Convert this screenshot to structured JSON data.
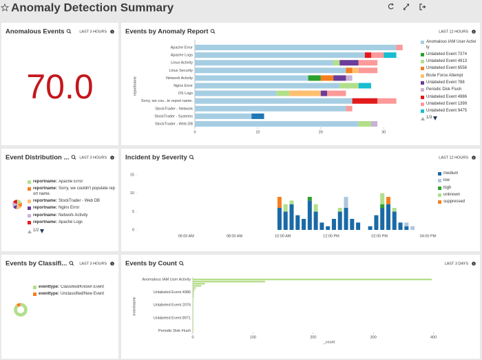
{
  "header": {
    "title": "Anomaly Detection Summary"
  },
  "chart_data": [
    {
      "type": "single",
      "title": "Anomalous Events",
      "time_range": "LAST 3 HOURS",
      "values": [
        70
      ],
      "value_labels": [
        "70.0"
      ],
      "color": "#c4161c"
    },
    {
      "type": "bar",
      "orientation": "horizontal",
      "stacked": true,
      "title": "Events by Anomaly Report",
      "time_range": "LAST 12 HOURS",
      "y_label": "reportname",
      "categories": [
        "Apache Error",
        "Apache Logs",
        "Linux Activity",
        "Linux Security",
        "Network Activity",
        "Nginx Error",
        "OS Logs",
        "Sorry, we cou...te report name.",
        "StockTrader - Network",
        "StockTrader - Systems",
        "StockTrader - Web DB"
      ],
      "xlim": [
        0,
        35
      ],
      "xticks": [
        0,
        10,
        20,
        30
      ],
      "series": [
        {
          "name": "Anomalous IAM User Activity",
          "color": "#a6cee3",
          "values": [
            32,
            27,
            22,
            24,
            18,
            23,
            13,
            25,
            24,
            9,
            26
          ]
        },
        {
          "name": "Unlabeled Event 7374",
          "color": "#2ca02c",
          "values": [
            0,
            0,
            0,
            0,
            2,
            0,
            0,
            0,
            0,
            0,
            0
          ]
        },
        {
          "name": "Unlabeled Event 4913",
          "color": "#b2df8a",
          "values": [
            0,
            0,
            1,
            0,
            0,
            3,
            2,
            0,
            0,
            0,
            2
          ]
        },
        {
          "name": "Unlabeled Event 6556",
          "color": "#f57f20",
          "values": [
            0,
            0,
            0,
            1,
            2,
            0,
            0,
            0,
            0,
            0,
            0
          ]
        },
        {
          "name": "Brute Force Attempt",
          "color": "#fdbf6f",
          "values": [
            0,
            0,
            0,
            1,
            0,
            0,
            5,
            0,
            0,
            0,
            0
          ]
        },
        {
          "name": "Unlabeled Event 788",
          "color": "#6a3d9a",
          "values": [
            0,
            0,
            3,
            0,
            2,
            0,
            1,
            0,
            0,
            0,
            0
          ]
        },
        {
          "name": "Periodic Disk Flush",
          "color": "#cab2d6",
          "values": [
            0,
            0,
            0,
            0,
            1,
            0,
            0,
            0,
            0,
            0,
            1
          ]
        },
        {
          "name": "Unlabeled Event 4986",
          "color": "#e31a1c",
          "values": [
            0,
            1,
            0,
            0,
            0,
            0,
            0,
            4,
            0,
            0,
            0
          ]
        },
        {
          "name": "Unlabeled Event 1399",
          "color": "#fb9a99",
          "values": [
            1,
            2,
            3,
            3,
            0,
            0,
            3,
            3,
            1,
            0,
            0
          ]
        },
        {
          "name": "Unlabeled Event 9475",
          "color": "#17becf",
          "values": [
            0,
            2,
            0,
            0,
            0,
            2,
            0,
            0,
            0,
            0,
            0
          ]
        },
        {
          "name": null,
          "color": "#1f78b4",
          "values": [
            0,
            0,
            0,
            0,
            0,
            0,
            0,
            0,
            0,
            2,
            0
          ]
        }
      ],
      "legend_page": "1/3"
    },
    {
      "type": "pie",
      "title": "Event Distribution ...",
      "time_range": "LAST 3 HOURS",
      "legend_key": "reportname:",
      "categories": [
        "Apache Error",
        "Sorry, we couldn't populate report name.",
        "StockTrader - Web DB",
        "Nginx Error",
        "Network Activity",
        "Apache Logs"
      ],
      "values": [
        33,
        32,
        29,
        28,
        25,
        33
      ],
      "colors": [
        "#b2df8a",
        "#f57f20",
        "#fdbf6f",
        "#6a3d9a",
        "#cab2d6",
        "#e31a1c"
      ],
      "legend_page": "1/2"
    },
    {
      "type": "bar",
      "orientation": "vertical",
      "stacked": true,
      "title": "Incident by Severity",
      "time_range": "LAST 12 HOURS",
      "categories": [
        null,
        null,
        null,
        null,
        null,
        null,
        null,
        null,
        "06:00 AM",
        null,
        null,
        null,
        null,
        null,
        null,
        null,
        "08:00 AM",
        null,
        null,
        null,
        null,
        null,
        null,
        null,
        "10:00 AM",
        null,
        null,
        null,
        null,
        null,
        null,
        null,
        "12:00 PM",
        null,
        null,
        null,
        null,
        null,
        null,
        null,
        "02:00 PM",
        null,
        null,
        null,
        null,
        null,
        null,
        null,
        "04:00 PM"
      ],
      "ylim": [
        0,
        15
      ],
      "yticks": [
        0,
        5,
        10,
        15
      ],
      "series": [
        {
          "name": "medium",
          "color": "#1a6aa6",
          "values": [
            0,
            0,
            0,
            0,
            0,
            0,
            0,
            0,
            0,
            0,
            0,
            0,
            0,
            0,
            0,
            0,
            0,
            0,
            0,
            0,
            0,
            0,
            0,
            6,
            5,
            7,
            4,
            3,
            8,
            5,
            2,
            1,
            3,
            5,
            6,
            3,
            2,
            0,
            1,
            4,
            6,
            7,
            5,
            2,
            1,
            0,
            0,
            0,
            0
          ]
        },
        {
          "name": "low",
          "color": "#aec7dc",
          "values": [
            0,
            0,
            0,
            0,
            0,
            0,
            0,
            0,
            0,
            0,
            0,
            0,
            0,
            0,
            0,
            0,
            0,
            0,
            0,
            0,
            0,
            0,
            0,
            0,
            0,
            0,
            0,
            0,
            0,
            0,
            0,
            0,
            0,
            0,
            3,
            0,
            0,
            0,
            0,
            0,
            0,
            0,
            0,
            0,
            1,
            1,
            0,
            0,
            0
          ]
        },
        {
          "name": "high",
          "color": "#2ca02c",
          "values": [
            0,
            0,
            0,
            0,
            0,
            0,
            0,
            0,
            0,
            0,
            0,
            0,
            0,
            0,
            0,
            0,
            0,
            0,
            0,
            0,
            0,
            0,
            0,
            0,
            0,
            0,
            0,
            0,
            1,
            0,
            0,
            0,
            0,
            0,
            0,
            0,
            0,
            0,
            0,
            0,
            1,
            0,
            0,
            0,
            0,
            0,
            0,
            0,
            0
          ]
        },
        {
          "name": "unknown",
          "color": "#b2df8a",
          "values": [
            0,
            0,
            0,
            0,
            0,
            0,
            0,
            0,
            0,
            0,
            0,
            0,
            0,
            0,
            0,
            0,
            0,
            0,
            0,
            0,
            0,
            0,
            0,
            0,
            2,
            1,
            0,
            0,
            0,
            2,
            0,
            0,
            0,
            1,
            0,
            0,
            0,
            0,
            0,
            0,
            3,
            0,
            1,
            0,
            0,
            0,
            0,
            0,
            0
          ]
        },
        {
          "name": "suppressed",
          "color": "#f57f20",
          "values": [
            0,
            0,
            0,
            0,
            0,
            0,
            0,
            0,
            0,
            0,
            0,
            0,
            0,
            0,
            0,
            0,
            0,
            0,
            0,
            0,
            0,
            0,
            0,
            3,
            0,
            0,
            0,
            0,
            0,
            0,
            0,
            0,
            0,
            0,
            0,
            0,
            0,
            0,
            0,
            0,
            0,
            2,
            0,
            0,
            0,
            0,
            0,
            0,
            0
          ]
        }
      ]
    },
    {
      "type": "pie",
      "donut": true,
      "title": "Events by Classifi...",
      "time_range": "LAST 3 HOURS",
      "legend_key": "eventtype:",
      "categories": [
        "Classified/Known Event",
        "Unclassified/New Event"
      ],
      "values": [
        62,
        8
      ],
      "colors": [
        "#b2df8a",
        "#f57f20"
      ]
    },
    {
      "type": "bar",
      "orientation": "horizontal",
      "title": "Events by Count",
      "time_range": "LAST 3 DAYS",
      "x_label": "_count",
      "y_label": "eventname",
      "categories": [
        "Anomalous IAM User Activity",
        null,
        null,
        null,
        null,
        null,
        "Unlabeled Event 4986",
        null,
        null,
        null,
        null,
        null,
        "Unlabeled Event 2076",
        null,
        null,
        null,
        null,
        null,
        "Unlabeled Event 8971",
        null,
        null,
        null,
        null,
        null,
        "Periodic Disk Flush"
      ],
      "values": [
        397,
        120,
        20,
        14,
        5,
        3,
        2,
        2,
        2,
        1,
        1,
        1,
        1,
        1,
        1,
        1,
        1,
        1,
        1,
        1,
        1,
        1,
        1,
        1,
        1
      ],
      "color": "#b5de8a",
      "xlim": [
        0,
        440
      ],
      "xticks": [
        0,
        100,
        200,
        300,
        400
      ]
    }
  ]
}
